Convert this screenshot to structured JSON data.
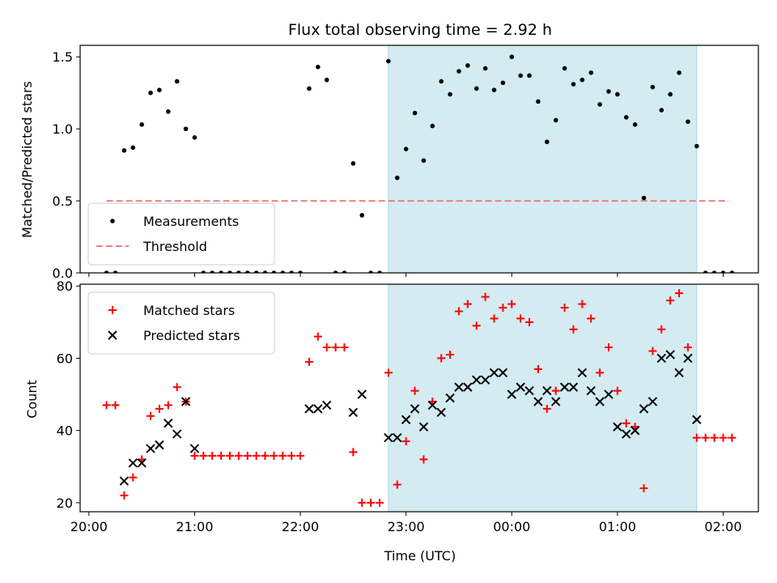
{
  "chart_data": [
    {
      "type": "scatter",
      "title": "Flux total observing time = 2.92 h",
      "xlabel": "",
      "ylabel": "Matched/Predicted stars",
      "x_unit": "time_utc",
      "xlim": [
        "19:55",
        "02:20"
      ],
      "ylim": [
        0,
        1.58
      ],
      "yticks": [
        0.0,
        0.5,
        1.0,
        1.5
      ],
      "ytick_labels": [
        "0.0",
        "0.5",
        "1.0",
        "1.5"
      ],
      "xticks": [
        "20:00",
        "21:00",
        "22:00",
        "23:00",
        "00:00",
        "01:00",
        "02:00"
      ],
      "shaded_span": [
        "22:50",
        "01:45"
      ],
      "shade_color": "#d3ebf1",
      "legend": {
        "position": "lower-left",
        "entries": [
          "Measurements",
          "Threshold"
        ]
      },
      "threshold": {
        "name": "Threshold",
        "y": 0.5,
        "x_range": [
          "20:10",
          "02:03"
        ],
        "color": "#f08080",
        "style": "dashed"
      },
      "series": [
        {
          "name": "Measurements",
          "color": "#000000",
          "marker": "dot",
          "points": [
            [
              "20:10",
              0
            ],
            [
              "20:15",
              0
            ],
            [
              "20:20",
              0.85
            ],
            [
              "20:25",
              0.87
            ],
            [
              "20:30",
              1.03
            ],
            [
              "20:35",
              1.25
            ],
            [
              "20:40",
              1.27
            ],
            [
              "20:45",
              1.12
            ],
            [
              "20:50",
              1.33
            ],
            [
              "20:55",
              1.0
            ],
            [
              "21:00",
              0.94
            ],
            [
              "21:05",
              0
            ],
            [
              "21:10",
              0
            ],
            [
              "21:15",
              0
            ],
            [
              "21:20",
              0
            ],
            [
              "21:25",
              0
            ],
            [
              "21:30",
              0
            ],
            [
              "21:35",
              0
            ],
            [
              "21:40",
              0
            ],
            [
              "21:45",
              0
            ],
            [
              "21:50",
              0
            ],
            [
              "21:55",
              0
            ],
            [
              "22:00",
              0
            ],
            [
              "22:05",
              1.28
            ],
            [
              "22:10",
              1.43
            ],
            [
              "22:15",
              1.34
            ],
            [
              "22:20",
              0
            ],
            [
              "22:25",
              0
            ],
            [
              "22:30",
              0.76
            ],
            [
              "22:35",
              0.4
            ],
            [
              "22:40",
              0
            ],
            [
              "22:45",
              0
            ],
            [
              "22:50",
              1.47
            ],
            [
              "22:55",
              0.66
            ],
            [
              "23:00",
              0.86
            ],
            [
              "23:05",
              1.11
            ],
            [
              "23:10",
              0.78
            ],
            [
              "23:15",
              1.02
            ],
            [
              "23:20",
              1.33
            ],
            [
              "23:25",
              1.24
            ],
            [
              "23:30",
              1.4
            ],
            [
              "23:35",
              1.44
            ],
            [
              "23:40",
              1.28
            ],
            [
              "23:45",
              1.42
            ],
            [
              "23:50",
              1.27
            ],
            [
              "23:55",
              1.32
            ],
            [
              "00:00",
              1.5
            ],
            [
              "00:05",
              1.37
            ],
            [
              "00:10",
              1.37
            ],
            [
              "00:15",
              1.19
            ],
            [
              "00:20",
              0.91
            ],
            [
              "00:25",
              1.06
            ],
            [
              "00:30",
              1.42
            ],
            [
              "00:35",
              1.31
            ],
            [
              "00:40",
              1.34
            ],
            [
              "00:45",
              1.39
            ],
            [
              "00:50",
              1.17
            ],
            [
              "00:55",
              1.26
            ],
            [
              "01:00",
              1.24
            ],
            [
              "01:05",
              1.08
            ],
            [
              "01:10",
              1.03
            ],
            [
              "01:15",
              0.52
            ],
            [
              "01:20",
              1.29
            ],
            [
              "01:25",
              1.13
            ],
            [
              "01:30",
              1.24
            ],
            [
              "01:35",
              1.39
            ],
            [
              "01:40",
              1.05
            ],
            [
              "01:45",
              0.88
            ],
            [
              "01:50",
              0
            ],
            [
              "01:55",
              0
            ],
            [
              "02:00",
              0
            ],
            [
              "02:05",
              0
            ]
          ]
        }
      ]
    },
    {
      "type": "scatter",
      "title": "",
      "xlabel": "Time (UTC)",
      "ylabel": "Count",
      "x_unit": "time_utc",
      "xlim": [
        "19:55",
        "02:20"
      ],
      "ylim": [
        17.5,
        80.5
      ],
      "yticks": [
        20,
        40,
        60,
        80
      ],
      "xticks": [
        "20:00",
        "21:00",
        "22:00",
        "23:00",
        "00:00",
        "01:00",
        "02:00"
      ],
      "shaded_span": [
        "22:50",
        "01:45"
      ],
      "shade_color": "#d3ebf1",
      "legend": {
        "position": "upper-left",
        "entries": [
          "Matched stars",
          "Predicted stars"
        ]
      },
      "series": [
        {
          "name": "Matched stars",
          "color": "#ff0000",
          "marker": "plus",
          "points": [
            [
              "20:10",
              47
            ],
            [
              "20:15",
              47
            ],
            [
              "20:20",
              22
            ],
            [
              "20:25",
              27
            ],
            [
              "20:30",
              32
            ],
            [
              "20:35",
              44
            ],
            [
              "20:40",
              46
            ],
            [
              "20:45",
              47
            ],
            [
              "20:50",
              52
            ],
            [
              "20:55",
              48
            ],
            [
              "21:00",
              33
            ],
            [
              "21:05",
              33
            ],
            [
              "21:10",
              33
            ],
            [
              "21:15",
              33
            ],
            [
              "21:20",
              33
            ],
            [
              "21:25",
              33
            ],
            [
              "21:30",
              33
            ],
            [
              "21:35",
              33
            ],
            [
              "21:40",
              33
            ],
            [
              "21:45",
              33
            ],
            [
              "21:50",
              33
            ],
            [
              "21:55",
              33
            ],
            [
              "22:00",
              33
            ],
            [
              "22:05",
              59
            ],
            [
              "22:10",
              66
            ],
            [
              "22:15",
              63
            ],
            [
              "22:20",
              63
            ],
            [
              "22:25",
              63
            ],
            [
              "22:30",
              34
            ],
            [
              "22:35",
              20
            ],
            [
              "22:40",
              20
            ],
            [
              "22:45",
              20
            ],
            [
              "22:50",
              56
            ],
            [
              "22:55",
              25
            ],
            [
              "23:00",
              37
            ],
            [
              "23:05",
              51
            ],
            [
              "23:10",
              32
            ],
            [
              "23:15",
              48
            ],
            [
              "23:20",
              60
            ],
            [
              "23:25",
              61
            ],
            [
              "23:30",
              73
            ],
            [
              "23:35",
              75
            ],
            [
              "23:40",
              69
            ],
            [
              "23:45",
              77
            ],
            [
              "23:50",
              71
            ],
            [
              "23:55",
              74
            ],
            [
              "00:00",
              75
            ],
            [
              "00:05",
              71
            ],
            [
              "00:10",
              70
            ],
            [
              "00:15",
              57
            ],
            [
              "00:20",
              46
            ],
            [
              "00:25",
              51
            ],
            [
              "00:30",
              74
            ],
            [
              "00:35",
              68
            ],
            [
              "00:40",
              75
            ],
            [
              "00:45",
              71
            ],
            [
              "00:50",
              56
            ],
            [
              "00:55",
              63
            ],
            [
              "01:00",
              51
            ],
            [
              "01:05",
              42
            ],
            [
              "01:10",
              41
            ],
            [
              "01:15",
              24
            ],
            [
              "01:20",
              62
            ],
            [
              "01:25",
              68
            ],
            [
              "01:30",
              76
            ],
            [
              "01:35",
              78
            ],
            [
              "01:40",
              63
            ],
            [
              "01:45",
              38
            ],
            [
              "01:50",
              38
            ],
            [
              "01:55",
              38
            ],
            [
              "02:00",
              38
            ],
            [
              "02:05",
              38
            ]
          ]
        },
        {
          "name": "Predicted stars",
          "color": "#000000",
          "marker": "x",
          "points": [
            [
              "20:20",
              26
            ],
            [
              "20:25",
              31
            ],
            [
              "20:30",
              31
            ],
            [
              "20:35",
              35
            ],
            [
              "20:40",
              36
            ],
            [
              "20:45",
              42
            ],
            [
              "20:50",
              39
            ],
            [
              "20:55",
              48
            ],
            [
              "21:00",
              35
            ],
            [
              "22:05",
              46
            ],
            [
              "22:10",
              46
            ],
            [
              "22:15",
              47
            ],
            [
              "22:30",
              45
            ],
            [
              "22:35",
              50
            ],
            [
              "22:50",
              38
            ],
            [
              "22:55",
              38
            ],
            [
              "23:00",
              43
            ],
            [
              "23:05",
              46
            ],
            [
              "23:10",
              41
            ],
            [
              "23:15",
              47
            ],
            [
              "23:20",
              45
            ],
            [
              "23:25",
              49
            ],
            [
              "23:30",
              52
            ],
            [
              "23:35",
              52
            ],
            [
              "23:40",
              54
            ],
            [
              "23:45",
              54
            ],
            [
              "23:50",
              56
            ],
            [
              "23:55",
              56
            ],
            [
              "00:00",
              50
            ],
            [
              "00:05",
              52
            ],
            [
              "00:10",
              51
            ],
            [
              "00:15",
              48
            ],
            [
              "00:20",
              51
            ],
            [
              "00:25",
              48
            ],
            [
              "00:30",
              52
            ],
            [
              "00:35",
              52
            ],
            [
              "00:40",
              56
            ],
            [
              "00:45",
              51
            ],
            [
              "00:50",
              48
            ],
            [
              "00:55",
              50
            ],
            [
              "01:00",
              41
            ],
            [
              "01:05",
              39
            ],
            [
              "01:10",
              40
            ],
            [
              "01:15",
              46
            ],
            [
              "01:20",
              48
            ],
            [
              "01:25",
              60
            ],
            [
              "01:30",
              61
            ],
            [
              "01:35",
              56
            ],
            [
              "01:40",
              60
            ],
            [
              "01:45",
              43
            ]
          ]
        }
      ]
    }
  ]
}
